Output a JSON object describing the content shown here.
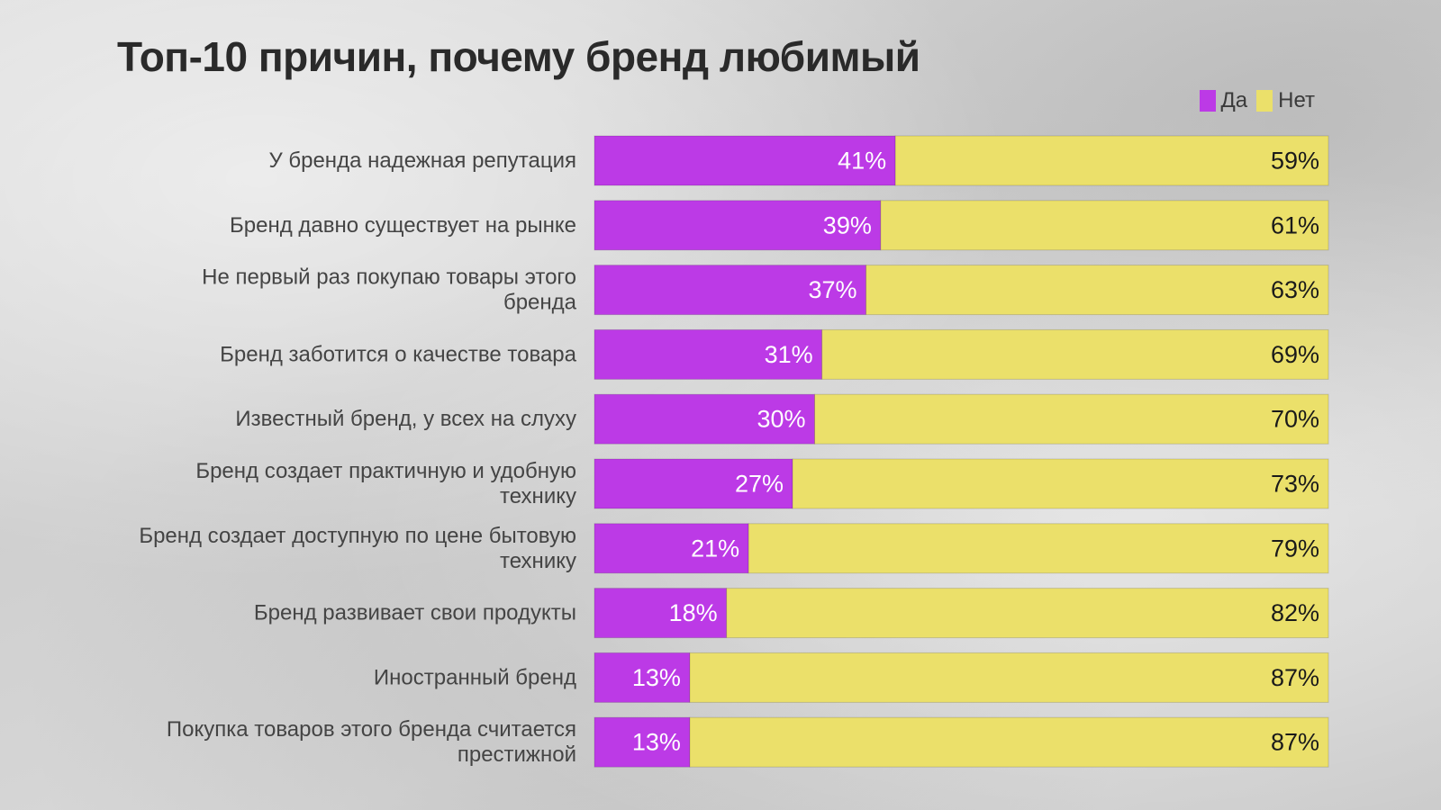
{
  "chart_data": {
    "type": "bar",
    "orientation": "horizontal",
    "stacked": true,
    "title": "Топ-10 причин, почему бренд любимый",
    "categories": [
      [
        "У бренда надежная репутация"
      ],
      [
        "Бренд давно существует на рынке"
      ],
      [
        "Не первый раз покупаю товары этого",
        "бренда"
      ],
      [
        "Бренд заботится о качестве товара"
      ],
      [
        "Известный бренд, у всех на слуху"
      ],
      [
        "Бренд создает практичную и удобную",
        "технику"
      ],
      [
        "Бренд создает доступную по цене бытовую",
        "технику"
      ],
      [
        "Бренд развивает свои продукты"
      ],
      [
        "Иностранный бренд"
      ],
      [
        "Покупка товаров этого бренда считается",
        "престижной"
      ]
    ],
    "series": [
      {
        "name": "Да",
        "color": "#bc3ae6",
        "values": [
          41,
          39,
          37,
          31,
          30,
          27,
          21,
          18,
          13,
          13
        ]
      },
      {
        "name": "Нет",
        "color": "#ebe06a",
        "values": [
          59,
          61,
          63,
          69,
          70,
          73,
          79,
          82,
          87,
          87
        ]
      }
    ],
    "value_suffix": "%",
    "xlim": [
      0,
      100
    ],
    "legend_position": "top-right",
    "grid": false
  }
}
